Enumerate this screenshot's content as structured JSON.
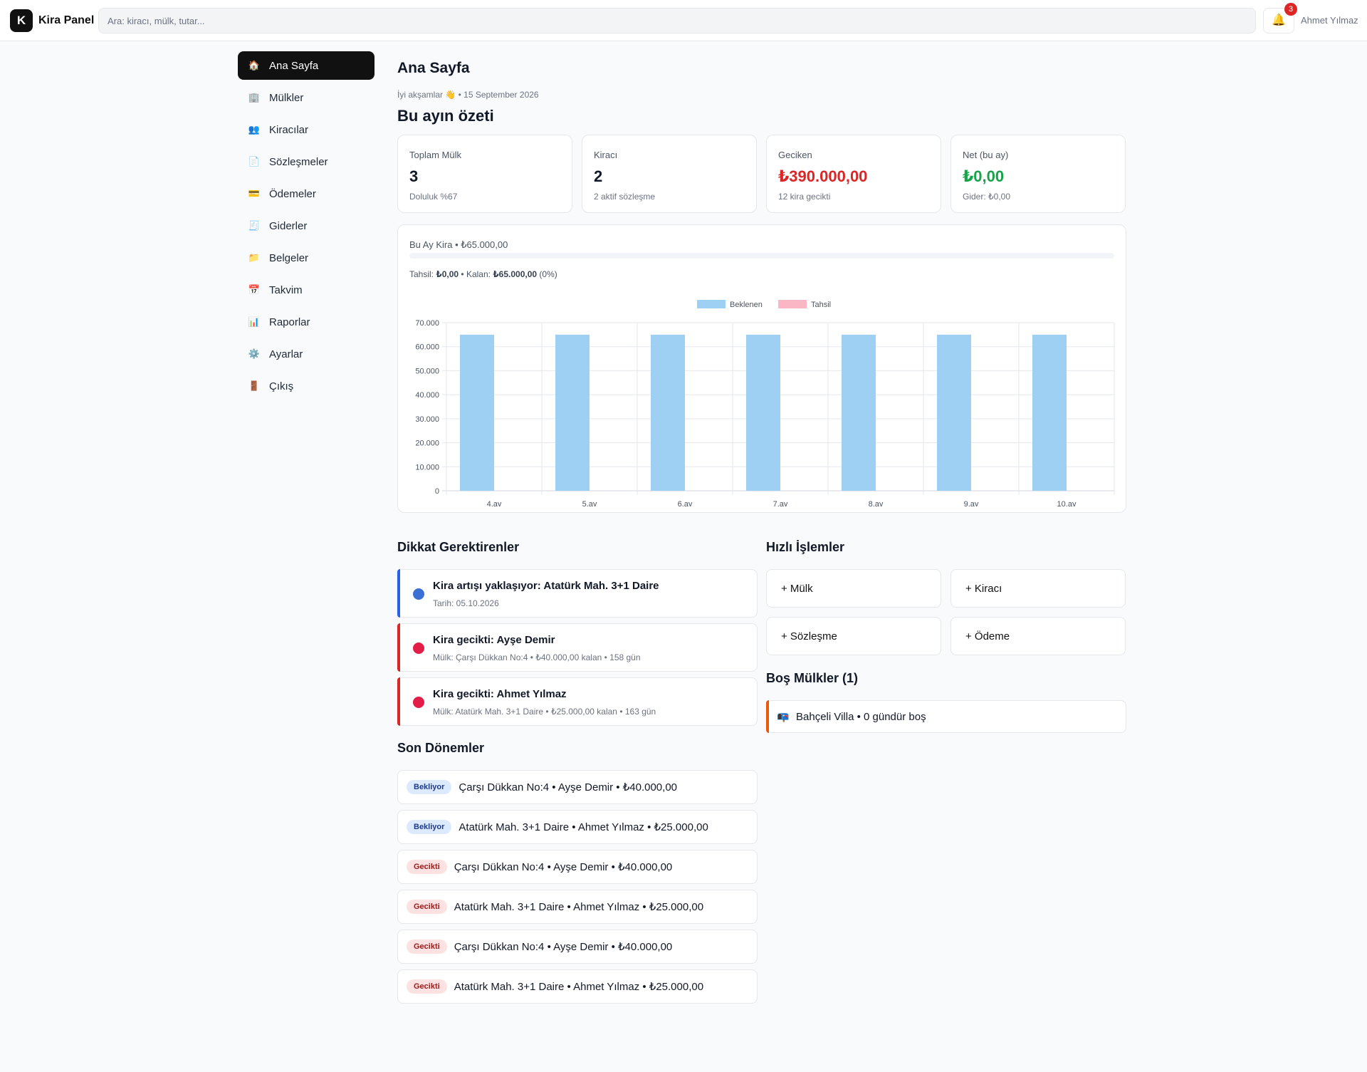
{
  "app": {
    "logo_letter": "K",
    "title": "Kira Panel"
  },
  "search": {
    "placeholder": "Ara: kiracı, mülk, tutar..."
  },
  "notifications": {
    "count": "3"
  },
  "user": {
    "name": "Ahmet Yılmaz"
  },
  "sidebar": {
    "items": [
      {
        "label": "Ana Sayfa",
        "icon": "house-icon",
        "glyph": "🏠",
        "active": true
      },
      {
        "label": "Mülkler",
        "icon": "building-icon",
        "glyph": "🏢",
        "active": false
      },
      {
        "label": "Kiracılar",
        "icon": "users-icon",
        "glyph": "👥",
        "active": false
      },
      {
        "label": "Sözleşmeler",
        "icon": "document-icon",
        "glyph": "📄",
        "active": false
      },
      {
        "label": "Ödemeler",
        "icon": "credit-card-icon",
        "glyph": "💳",
        "active": false
      },
      {
        "label": "Giderler",
        "icon": "receipt-icon",
        "glyph": "🧾",
        "active": false
      },
      {
        "label": "Belgeler",
        "icon": "folder-icon",
        "glyph": "📁",
        "active": false
      },
      {
        "label": "Takvim",
        "icon": "calendar-icon",
        "glyph": "📅",
        "active": false
      },
      {
        "label": "Raporlar",
        "icon": "bar-chart-icon",
        "glyph": "📊",
        "active": false
      },
      {
        "label": "Ayarlar",
        "icon": "gear-icon",
        "glyph": "⚙️",
        "active": false
      },
      {
        "label": "Çıkış",
        "icon": "door-icon",
        "glyph": "🚪",
        "active": false
      }
    ]
  },
  "header": {
    "title": "Ana Sayfa",
    "greeting": "İyi akşamlar 👋",
    "date": "• 15 September 2026",
    "summary_title": "Bu ayın özeti"
  },
  "stats": [
    {
      "label": "Toplam Mülk",
      "value": "3",
      "sub": "Doluluk %67",
      "color": "#111827"
    },
    {
      "label": "Kiracı",
      "value": "2",
      "sub": "2 aktif sözleşme",
      "color": "#111827"
    },
    {
      "label": "Geciken",
      "value": "₺390.000,00",
      "sub": "12 kira gecikti",
      "color": "#dc2626"
    },
    {
      "label": "Net (bu ay)",
      "value": "₺0,00",
      "sub": "Gider: ₺0,00",
      "color": "#16a34a"
    }
  ],
  "monthly": {
    "header": "Bu Ay Kira • ₺65.000,00",
    "collected_label": "Tahsil:",
    "collected_value": "₺0,00",
    "separator": "• Kalan:",
    "remaining_value": "₺65.000,00",
    "percent": "(0%)",
    "progress_fraction": 0
  },
  "chart_data": {
    "type": "bar",
    "categories": [
      "4.ay",
      "5.ay",
      "6.ay",
      "7.ay",
      "8.ay",
      "9.ay",
      "10.ay"
    ],
    "series": [
      {
        "name": "Beklenen",
        "values": [
          65000,
          65000,
          65000,
          65000,
          65000,
          65000,
          65000
        ],
        "color": "#9dd0f2"
      },
      {
        "name": "Tahsil",
        "values": [
          0,
          0,
          0,
          0,
          0,
          0,
          0
        ],
        "color": "#fbb6c6"
      }
    ],
    "yticks": [
      "0",
      "10.000",
      "20.000",
      "30.000",
      "40.000",
      "50.000",
      "60.000",
      "70.000"
    ],
    "ylim": [
      0,
      70000
    ],
    "grid": true,
    "legend": "top-center"
  },
  "attention": {
    "title": "Dikkat Gerektirenler",
    "items": [
      {
        "title": "Kira artışı yaklaşıyor: Atatürk Mah. 3+1 Daire",
        "sub": "Tarih: 05.10.2026",
        "color": "#2563eb",
        "dot": "#3b6fd4"
      },
      {
        "title": "Kira gecikti: Ayşe Demir",
        "sub": "Mülk: Çarşı Dükkan No:4 • ₺40.000,00 kalan • 158 gün",
        "color": "#dc2626",
        "dot": "#e11d48"
      },
      {
        "title": "Kira gecikti: Ahmet Yılmaz",
        "sub": "Mülk: Atatürk Mah. 3+1 Daire • ₺25.000,00 kalan • 163 gün",
        "color": "#dc2626",
        "dot": "#e11d48"
      }
    ]
  },
  "quick_actions": {
    "title": "Hızlı İşlemler",
    "items": [
      "+ Mülk",
      "+ Kiracı",
      "+ Sözleşme",
      "+ Ödeme"
    ]
  },
  "vacant": {
    "title": "Boş Mülkler (1)",
    "items": [
      {
        "icon": "mailbox-icon",
        "glyph": "📭",
        "text": "Bahçeli Villa • 0 gündür boş"
      }
    ]
  },
  "periods": {
    "title": "Son Dönemler",
    "items": [
      {
        "status": "Bekliyor",
        "kind": "wait",
        "text": "Çarşı Dükkan No:4 • Ayşe Demir • ₺40.000,00"
      },
      {
        "status": "Bekliyor",
        "kind": "wait",
        "text": "Atatürk Mah. 3+1 Daire • Ahmet Yılmaz • ₺25.000,00"
      },
      {
        "status": "Gecikti",
        "kind": "late",
        "text": "Çarşı Dükkan No:4 • Ayşe Demir • ₺40.000,00"
      },
      {
        "status": "Gecikti",
        "kind": "late",
        "text": "Atatürk Mah. 3+1 Daire • Ahmet Yılmaz • ₺25.000,00"
      },
      {
        "status": "Gecikti",
        "kind": "late",
        "text": "Çarşı Dükkan No:4 • Ayşe Demir • ₺40.000,00"
      },
      {
        "status": "Gecikti",
        "kind": "late",
        "text": "Atatürk Mah. 3+1 Daire • Ahmet Yılmaz • ₺25.000,00"
      }
    ]
  }
}
